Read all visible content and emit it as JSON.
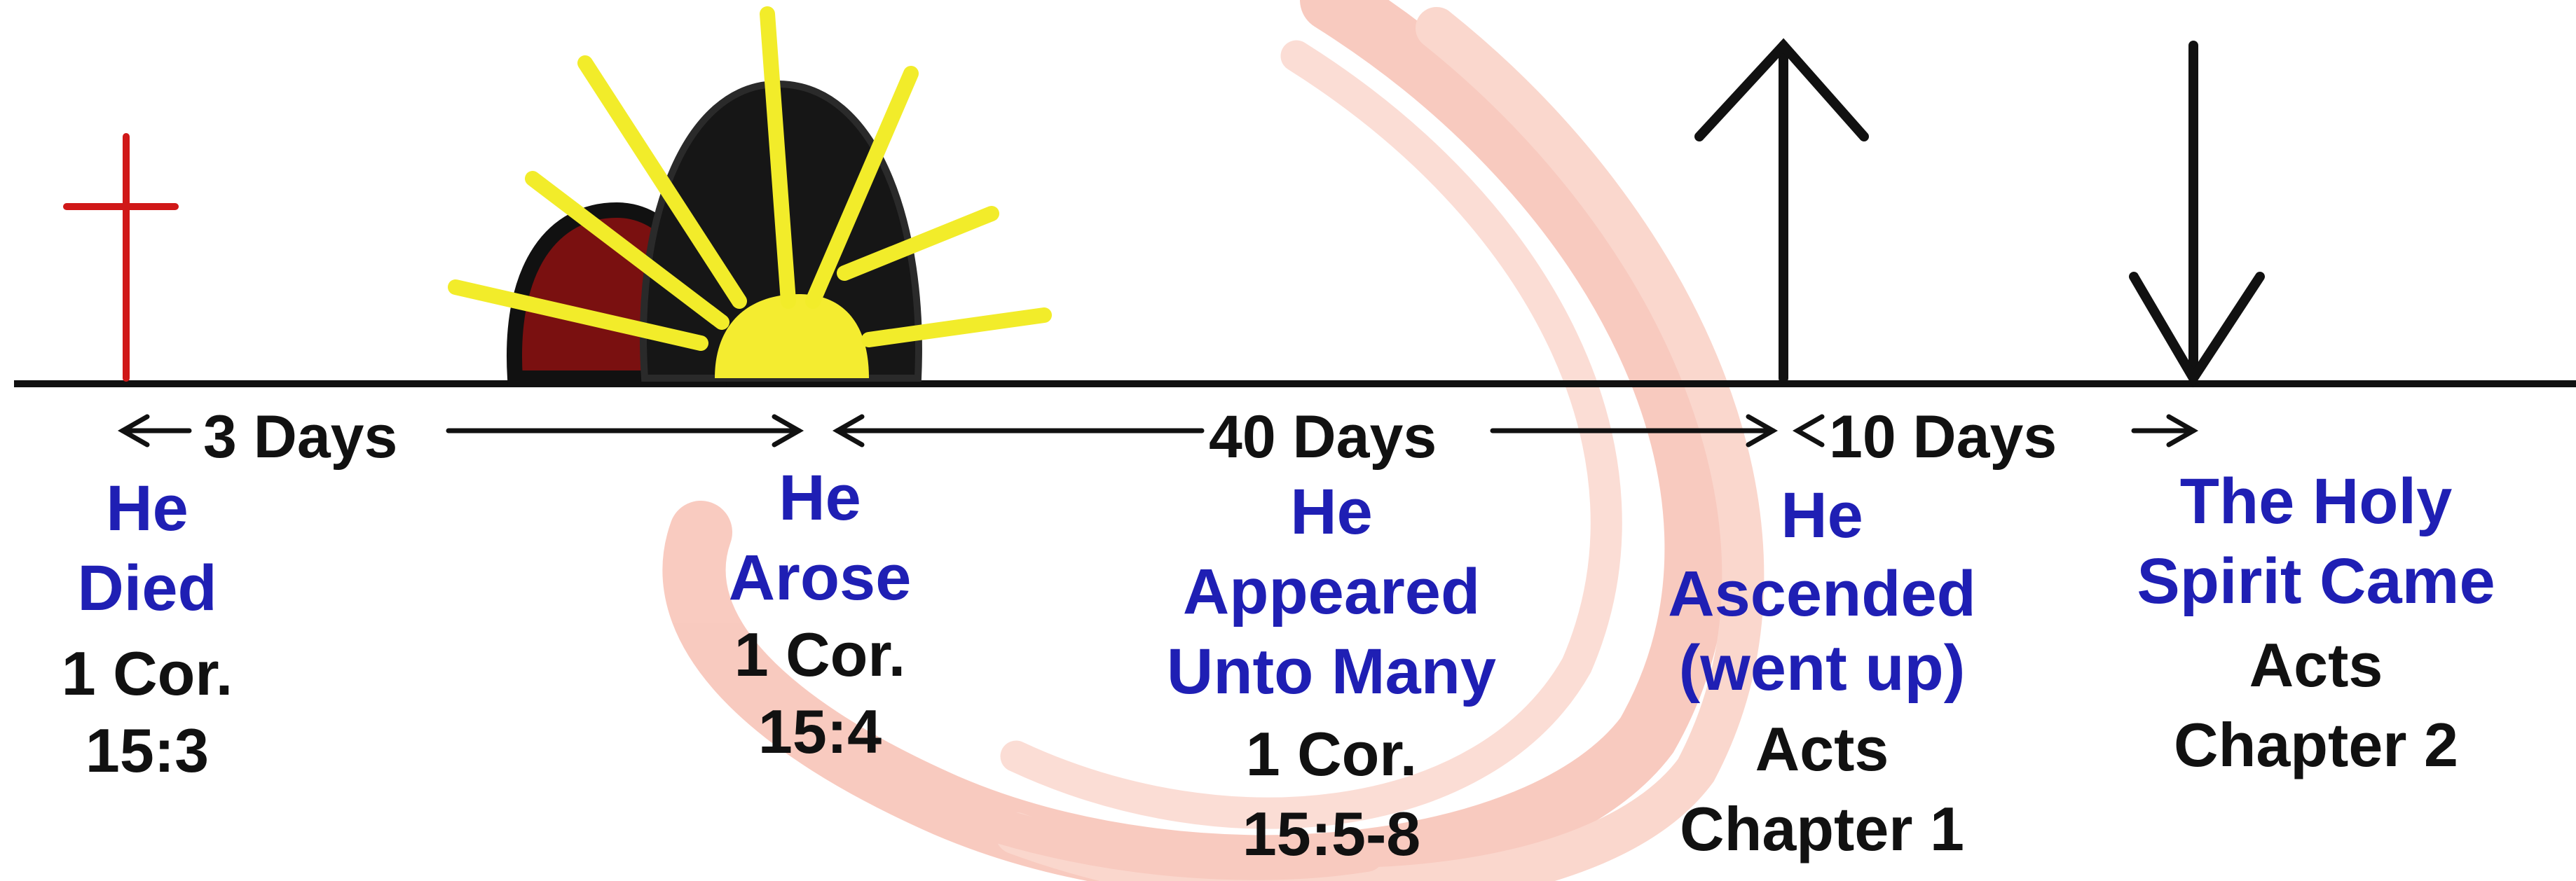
{
  "colors": {
    "event_text": "#1f1fb4",
    "reference_text": "#111111",
    "cross": "#d01818",
    "sun_rays": "#f2ec2a",
    "tomb": "#111111",
    "swirl": "#f29a86"
  },
  "icons": {
    "cross": "cross-icon",
    "tomb_sunrise": "tomb-sunrise-icon",
    "up_arrow": "arrow-up-icon",
    "down_arrow": "arrow-down-icon"
  },
  "spans": [
    {
      "label": "3 Days"
    },
    {
      "label": "40 Days"
    },
    {
      "label": "10 Days"
    }
  ],
  "events": [
    {
      "title_line1": "He",
      "title_line2": "Died",
      "ref_line1": "1  Cor.",
      "ref_line2": "15:3"
    },
    {
      "title_line1": "He",
      "title_line2": "Arose",
      "ref_line1": "1 Cor.",
      "ref_line2": "15:4"
    },
    {
      "title_line1": "He",
      "title_line2": "Appeared",
      "title_line3": "Unto Many",
      "ref_line1": "1 Cor.",
      "ref_line2": "15:5-8"
    },
    {
      "title_line1": "He",
      "title_line2": "Ascended",
      "title_line3": "(went up)",
      "ref_line1": "Acts",
      "ref_line2": "Chapter 1"
    },
    {
      "title_line1": "The Holy",
      "title_line2": "Spirit Came",
      "ref_line1": "Acts",
      "ref_line2": "Chapter 2"
    }
  ]
}
